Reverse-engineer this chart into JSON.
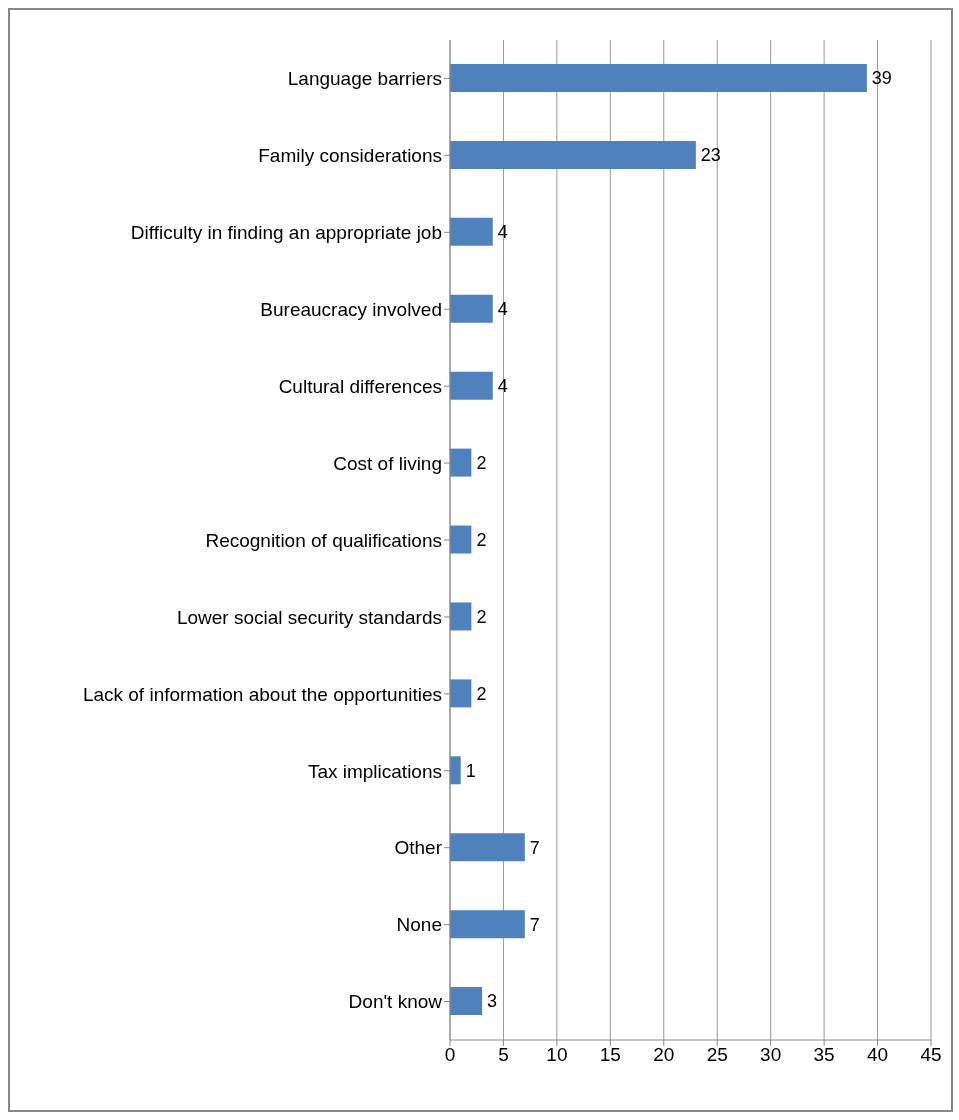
{
  "chart_data": {
    "type": "bar",
    "orientation": "horizontal",
    "categories": [
      "Language barriers",
      "Family considerations",
      "Difficulty in finding an appropriate job",
      "Bureaucracy involved",
      "Cultural differences",
      "Cost of living",
      "Recognition of qualifications",
      "Lower social security standards",
      "Lack of information about the opportunities",
      "Tax implications",
      "Other",
      "None",
      "Don't know"
    ],
    "values": [
      39,
      23,
      4,
      4,
      4,
      2,
      2,
      2,
      2,
      1,
      7,
      7,
      3
    ],
    "color": "#4f81bd",
    "xlim": [
      0,
      45
    ],
    "xticks": [
      0,
      5,
      10,
      15,
      20,
      25,
      30,
      35,
      40,
      45
    ],
    "grid": "x",
    "data_labels": true,
    "legend": false
  }
}
